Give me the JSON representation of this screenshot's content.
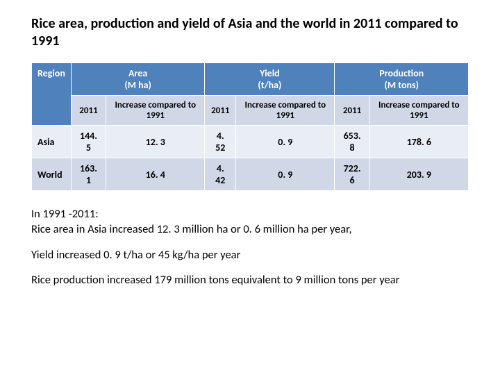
{
  "title": "Rice area, production and yield of Asia and the world in 2011 compared to 1991",
  "table": {
    "colors": {
      "header_bg": "#4f81bd",
      "header_fg": "#ffffff",
      "band1": "#d0d8e8",
      "band2": "#e9edf4",
      "border": "#ffffff"
    },
    "header1": {
      "region": "Region",
      "area": "Area\n(M ha)",
      "yield": "Yield\n(t/ha)",
      "production": "Production\n(M tons)"
    },
    "header2": {
      "c1": "2011",
      "c2": "Increase compared to 1991",
      "c3": "2011",
      "c4": "Increase compared to 1991",
      "c5": "2011",
      "c6": "Increase compared to  1991"
    },
    "rows": [
      {
        "label": "Asia",
        "c1": "144. 5",
        "c2": "12. 3",
        "c3": "4. 52",
        "c4": "0. 9",
        "c5": "653. 8",
        "c6": "178. 6"
      },
      {
        "label": "World",
        "c1": "163. 1",
        "c2": "16. 4",
        "c3": "4. 42",
        "c4": "0. 9",
        "c5": "722. 6",
        "c6": "203. 9"
      }
    ]
  },
  "notes": {
    "p1a": "In 1991 -2011:",
    "p1b": "Rice area in Asia increased 12. 3 million ha or 0. 6 million ha per year,",
    "p2": "Yield increased 0. 9 t/ha or 45 kg/ha per year",
    "p3": "Rice production increased 179 million tons equivalent to 9 million tons per year"
  }
}
